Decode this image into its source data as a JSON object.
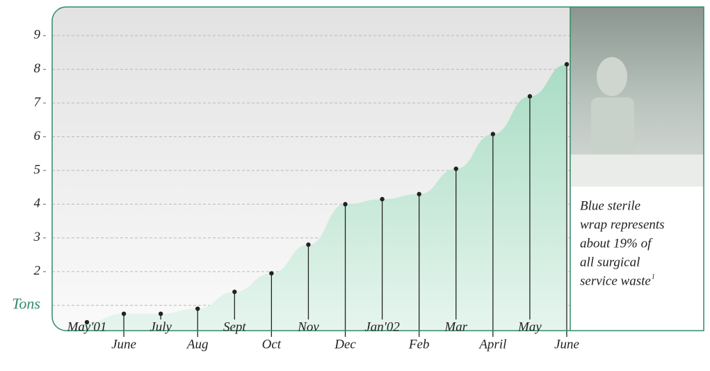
{
  "chart_data": {
    "type": "area",
    "y_label": "Tons",
    "categories": [
      "May'01",
      "June",
      "July",
      "Aug",
      "Sept",
      "Oct",
      "Nov",
      "Dec",
      "Jan'02",
      "Feb",
      "Mar",
      "April",
      "May",
      "June"
    ],
    "values": [
      0.5,
      0.75,
      0.75,
      0.9,
      1.4,
      1.95,
      2.8,
      4.0,
      4.15,
      4.3,
      5.05,
      6.08,
      7.2,
      8.15
    ],
    "color": "#2e8b66",
    "ylim": [
      0.25,
      9.85
    ],
    "yticks": [
      {
        "value": 1,
        "label": "Tons"
      },
      2,
      3,
      4,
      5,
      6,
      7,
      8,
      9
    ],
    "grid": true,
    "caption_lines": [
      "Blue sterile",
      "wrap represents",
      "about 19% of",
      "all surgical",
      "service waste"
    ],
    "footnote_mark": "1"
  }
}
